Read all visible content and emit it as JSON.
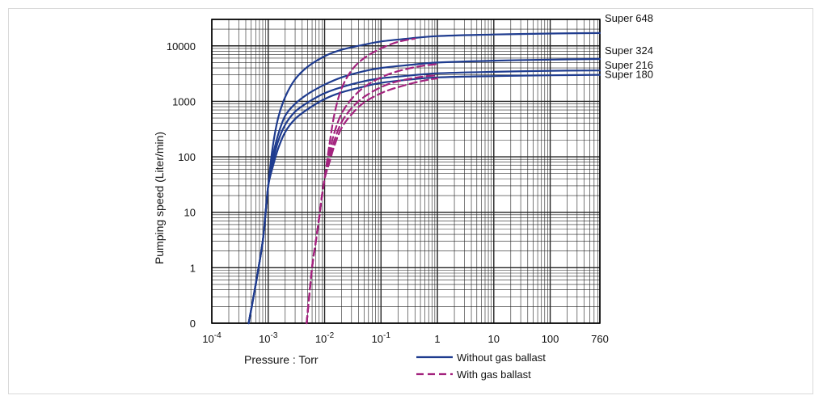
{
  "chart_data": {
    "type": "line",
    "title": "",
    "xlabel": "Pressure : Torr",
    "ylabel": "Pumping speed (Liter/min)",
    "x_scale": "log",
    "y_scale": "log",
    "xlim": [
      0.0001,
      760
    ],
    "ylim": [
      0.1,
      30000
    ],
    "grid": true,
    "x_ticks": [
      {
        "value": 0.0001,
        "base": "10",
        "exp": "-4"
      },
      {
        "value": 0.001,
        "base": "10",
        "exp": "-3"
      },
      {
        "value": 0.01,
        "base": "10",
        "exp": "-2"
      },
      {
        "value": 0.1,
        "base": "10",
        "exp": "-1"
      },
      {
        "value": 1,
        "base": "1",
        "exp": ""
      },
      {
        "value": 10,
        "base": "10",
        "exp": ""
      },
      {
        "value": 100,
        "base": "100",
        "exp": ""
      },
      {
        "value": 760,
        "base": "760",
        "exp": ""
      }
    ],
    "y_ticks": [
      {
        "value": 0.1,
        "label": "0"
      },
      {
        "value": 1,
        "label": "1"
      },
      {
        "value": 10,
        "label": "10"
      },
      {
        "value": 100,
        "label": "100"
      },
      {
        "value": 1000,
        "label": "1000"
      },
      {
        "value": 10000,
        "label": "10000"
      }
    ],
    "legend": {
      "placement": "bottom-center",
      "entries": [
        {
          "label": "Without gas ballast",
          "style": "solid"
        },
        {
          "label": "With gas ballast",
          "style": "dashed"
        }
      ]
    },
    "colors": {
      "without_gas_ballast": "#1f3c8f",
      "with_gas_ballast": "#a3237e",
      "grid": "#222222"
    },
    "series": [
      {
        "name": "Super 648",
        "label_value": 17000,
        "group": "without",
        "x": [
          0.00045,
          0.0006,
          0.0008,
          0.0009,
          0.001,
          0.0012,
          0.0015,
          0.002,
          0.003,
          0.005,
          0.01,
          0.02,
          0.05,
          0.1,
          0.3,
          1,
          10,
          100,
          760
        ],
        "y": [
          0.1,
          0.5,
          3,
          10,
          30,
          150,
          500,
          1200,
          2500,
          4200,
          6500,
          8500,
          10500,
          12000,
          13500,
          15000,
          16000,
          16700,
          17000
        ]
      },
      {
        "name": "Super 324",
        "label_value": 5800,
        "group": "without",
        "x": [
          0.00045,
          0.0006,
          0.0008,
          0.0009,
          0.001,
          0.0012,
          0.0015,
          0.002,
          0.003,
          0.005,
          0.01,
          0.02,
          0.05,
          0.1,
          0.3,
          1,
          10,
          100,
          760
        ],
        "y": [
          0.1,
          0.5,
          3,
          10,
          30,
          100,
          250,
          550,
          900,
          1350,
          2000,
          2700,
          3500,
          4000,
          4500,
          5000,
          5400,
          5650,
          5800
        ]
      },
      {
        "name": "Super 216",
        "label_value": 3600,
        "group": "without",
        "x": [
          0.00045,
          0.0006,
          0.0008,
          0.0009,
          0.001,
          0.0012,
          0.0015,
          0.002,
          0.003,
          0.005,
          0.01,
          0.02,
          0.05,
          0.1,
          0.3,
          1,
          10,
          100,
          760
        ],
        "y": [
          0.1,
          0.5,
          3,
          10,
          30,
          80,
          190,
          380,
          650,
          950,
          1400,
          1800,
          2300,
          2600,
          2900,
          3200,
          3400,
          3550,
          3600
        ]
      },
      {
        "name": "Super 180",
        "label_value": 3000,
        "group": "without",
        "x": [
          0.00045,
          0.0006,
          0.0008,
          0.0009,
          0.001,
          0.0012,
          0.0015,
          0.002,
          0.003,
          0.005,
          0.01,
          0.02,
          0.05,
          0.1,
          0.3,
          1,
          10,
          100,
          760
        ],
        "y": [
          0.1,
          0.5,
          3,
          10,
          30,
          65,
          140,
          280,
          480,
          720,
          1100,
          1450,
          1850,
          2150,
          2450,
          2700,
          2850,
          2950,
          3000
        ]
      },
      {
        "name": "",
        "group": "with",
        "x": [
          0.0048,
          0.006,
          0.007,
          0.008,
          0.009,
          0.01,
          0.012,
          0.015,
          0.02,
          0.03,
          0.05,
          0.1,
          0.2,
          0.4
        ],
        "y": [
          0.1,
          1,
          3,
          8,
          20,
          40,
          150,
          600,
          1700,
          3600,
          6000,
          9000,
          11800,
          13500
        ]
      },
      {
        "name": "",
        "group": "with",
        "x": [
          0.0048,
          0.006,
          0.007,
          0.008,
          0.009,
          0.01,
          0.012,
          0.015,
          0.02,
          0.03,
          0.05,
          0.1,
          0.2,
          0.5,
          1
        ],
        "y": [
          0.1,
          1,
          3,
          8,
          20,
          40,
          110,
          280,
          600,
          1100,
          1800,
          2700,
          3500,
          4300,
          4700
        ]
      },
      {
        "name": "",
        "group": "with",
        "x": [
          0.0048,
          0.006,
          0.007,
          0.008,
          0.009,
          0.01,
          0.012,
          0.015,
          0.02,
          0.03,
          0.05,
          0.1,
          0.2,
          0.5,
          1
        ],
        "y": [
          0.1,
          1,
          3,
          8,
          20,
          40,
          90,
          200,
          420,
          750,
          1200,
          1800,
          2300,
          2750,
          2950
        ]
      },
      {
        "name": "",
        "group": "with",
        "x": [
          0.0048,
          0.006,
          0.007,
          0.008,
          0.009,
          0.01,
          0.012,
          0.015,
          0.02,
          0.03,
          0.05,
          0.1,
          0.2,
          0.5,
          1
        ],
        "y": [
          0.1,
          1,
          3,
          8,
          20,
          40,
          75,
          160,
          330,
          580,
          950,
          1400,
          1800,
          2300,
          2600
        ]
      }
    ]
  }
}
